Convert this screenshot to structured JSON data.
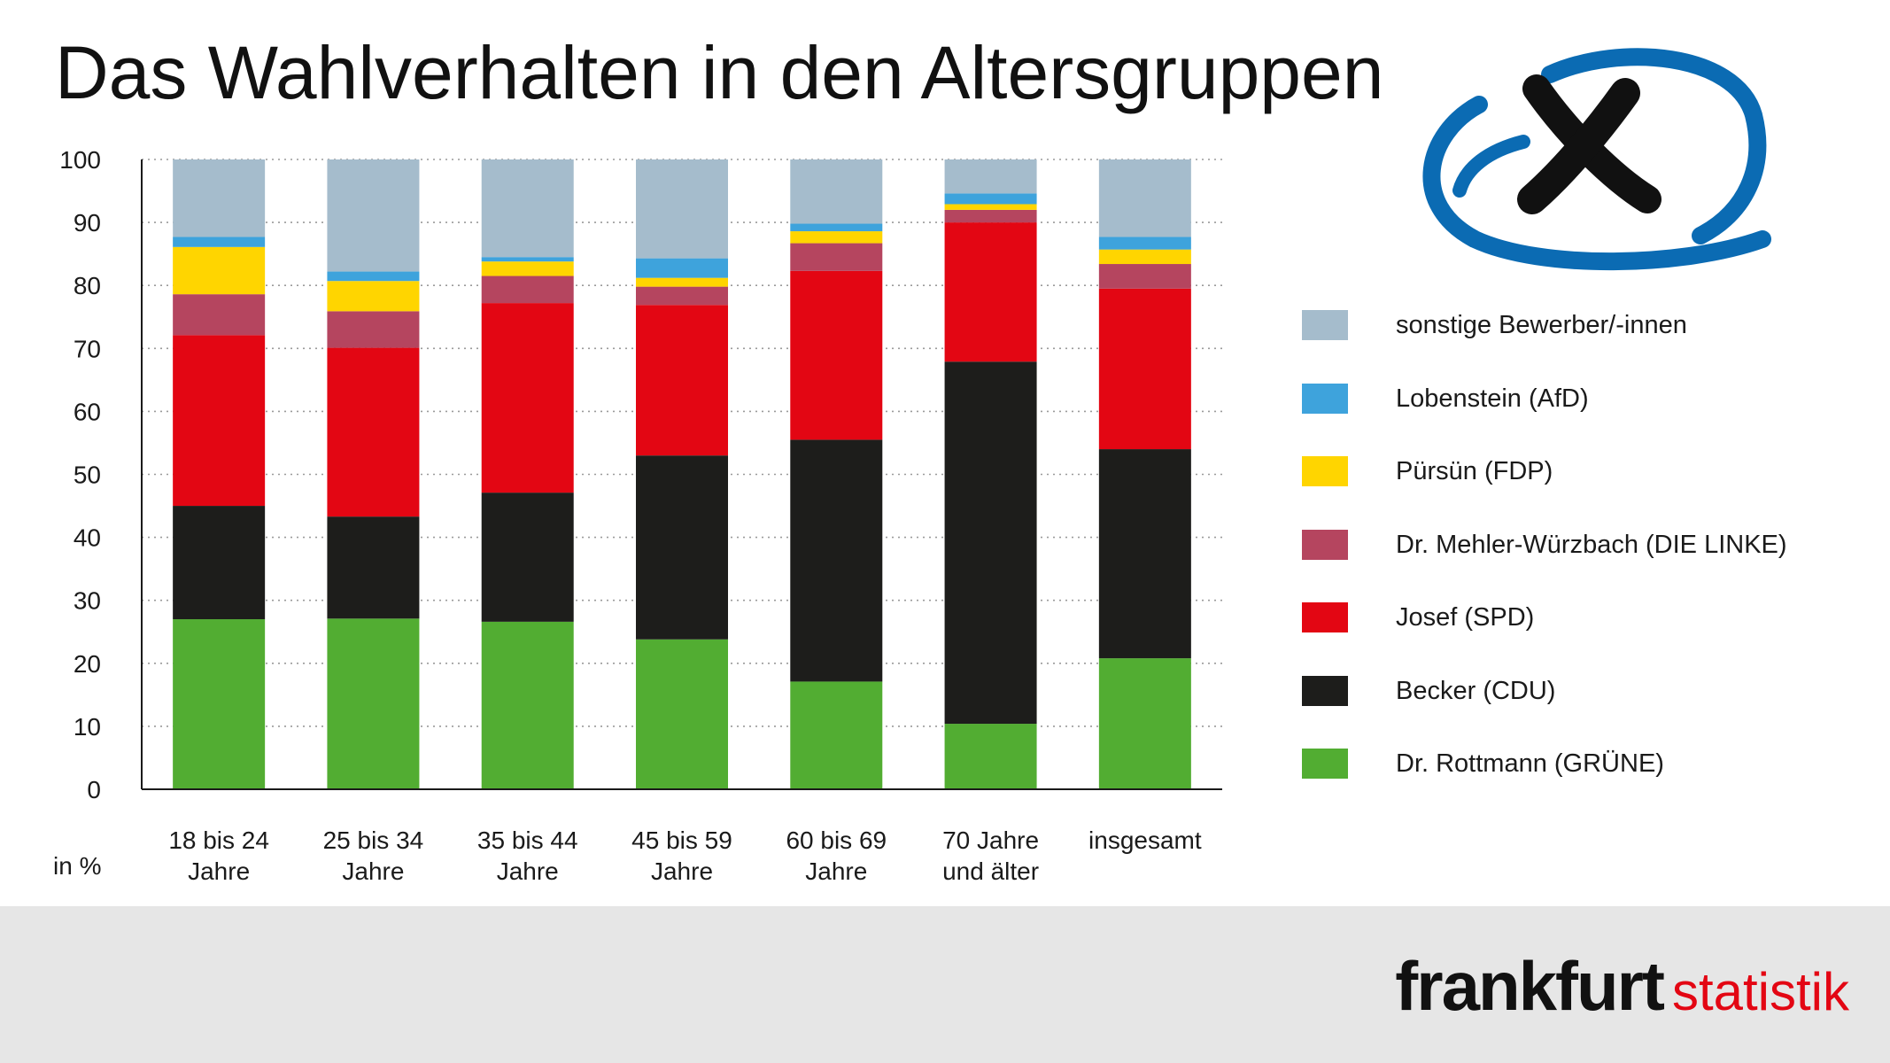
{
  "title": "Das Wahlverhalten in den Altersgruppen",
  "unit_label": "in %",
  "logo": {
    "main": "frankfurt",
    "sub": "statistik"
  },
  "icons": {
    "ballot": "ballot-cross-icon"
  },
  "chart_data": {
    "type": "bar",
    "stacked": true,
    "ylim": [
      0,
      100
    ],
    "yticks": [
      0,
      10,
      20,
      30,
      40,
      50,
      60,
      70,
      80,
      90,
      100
    ],
    "grid": true,
    "legend_position": "right",
    "categories": [
      [
        "18 bis 24",
        "Jahre"
      ],
      [
        "25 bis 34",
        "Jahre"
      ],
      [
        "35 bis 44",
        "Jahre"
      ],
      [
        "45 bis 59",
        "Jahre"
      ],
      [
        "60 bis 69",
        "Jahre"
      ],
      [
        "70 Jahre",
        "und älter"
      ],
      [
        "insgesamt"
      ]
    ],
    "series": [
      {
        "name": "Dr. Rottmann (GRÜNE)",
        "color": "#52ad32",
        "values": [
          27.0,
          27.1,
          26.6,
          23.8,
          17.1,
          10.4,
          20.8
        ]
      },
      {
        "name": "Becker (CDU)",
        "color": "#1d1d1b",
        "values": [
          18.0,
          16.2,
          20.5,
          29.2,
          38.4,
          57.5,
          33.2
        ]
      },
      {
        "name": "Josef (SPD)",
        "color": "#e30613",
        "values": [
          27.1,
          26.8,
          30.1,
          23.9,
          26.8,
          22.1,
          25.5
        ]
      },
      {
        "name": "Dr. Mehler-Würzbach (DIE LINKE)",
        "color": "#b5455f",
        "values": [
          6.5,
          5.8,
          4.3,
          2.9,
          4.4,
          2.0,
          3.9
        ]
      },
      {
        "name": "Pürsün (FDP)",
        "color": "#ffd500",
        "values": [
          7.5,
          4.8,
          2.3,
          1.4,
          1.9,
          0.9,
          2.3
        ]
      },
      {
        "name": "Lobenstein (AfD)",
        "color": "#3ea3dc",
        "values": [
          1.6,
          1.5,
          0.7,
          3.1,
          1.2,
          1.7,
          2.0
        ]
      },
      {
        "name": "sonstige Bewerber/-innen",
        "color": "#a5bccc",
        "values": [
          12.3,
          17.8,
          15.5,
          15.7,
          10.2,
          5.4,
          12.3
        ]
      }
    ]
  }
}
